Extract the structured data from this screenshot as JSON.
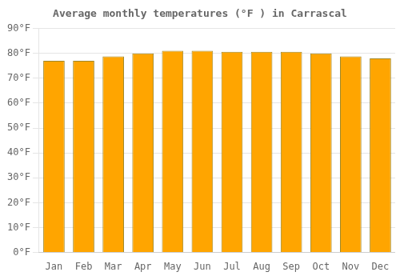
{
  "chart_data": {
    "type": "bar",
    "title": "Average monthly temperatures (°F ) in Carrascal",
    "categories": [
      "Jan",
      "Feb",
      "Mar",
      "Apr",
      "May",
      "Jun",
      "Jul",
      "Aug",
      "Sep",
      "Oct",
      "Nov",
      "Dec"
    ],
    "values": [
      77.0,
      77.0,
      78.8,
      80.0,
      81.0,
      81.0,
      80.6,
      80.6,
      80.6,
      80.0,
      78.8,
      78.0
    ],
    "color": "#FFA500",
    "ylim": [
      0,
      90
    ],
    "yticks": [
      {
        "value": 0,
        "label": "0°F"
      },
      {
        "value": 10,
        "label": "10°F"
      },
      {
        "value": 20,
        "label": "20°F"
      },
      {
        "value": 30,
        "label": "30°F"
      },
      {
        "value": 40,
        "label": "40°F"
      },
      {
        "value": 50,
        "label": "50°F"
      },
      {
        "value": 60,
        "label": "60°F"
      },
      {
        "value": 70,
        "label": "70°F"
      },
      {
        "value": 80,
        "label": "80°F"
      },
      {
        "value": 90,
        "label": "90°F"
      }
    ],
    "grid": true
  }
}
